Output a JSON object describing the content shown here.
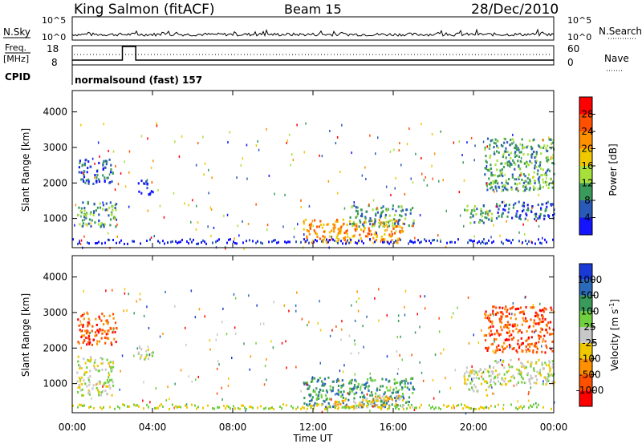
{
  "header": {
    "station": "King Salmon (fitACF)",
    "beam": "Beam 15",
    "date": "28/Dec/2010"
  },
  "top_panels": {
    "nsky_label": "N.Sky",
    "nsearch_label": "N.Search",
    "nsky_ticks": [
      "10^5",
      "10^0"
    ],
    "freq_label_line1": "Freq.",
    "freq_label_line2": "[MHz]",
    "freq_ticks": [
      "18",
      "8"
    ],
    "nave_label": "Nave",
    "nave_ticks": [
      "60",
      "0"
    ],
    "cpid_label": "CPID",
    "cpid_text": "normalsound (fast) 157",
    "freq_step": {
      "start": "02:30",
      "end": "03:10"
    }
  },
  "chart_data": [
    {
      "type": "heatmap",
      "title": "",
      "ylabel": "Slant Range [km]",
      "xlabel": "",
      "x_ticks": [
        "00:00",
        "04:00",
        "08:00",
        "12:00",
        "16:00",
        "20:00",
        "00:00"
      ],
      "y_ticks": [
        "1000",
        "2000",
        "3000",
        "4000"
      ],
      "xlim_hours": [
        0,
        24
      ],
      "ylim_km": [
        180,
        4600
      ],
      "colorbar": {
        "label": "Power [dB]",
        "ticks": [
          "4",
          "8",
          "12",
          "16",
          "20",
          "24",
          "28"
        ],
        "colors": [
          "#1414ff",
          "#2a5ab8",
          "#3a9a5a",
          "#a6e03a",
          "#f0c800",
          "#ff9000",
          "#ff5000",
          "#ff0000"
        ]
      },
      "echo_regions": [
        {
          "t_start": 0.2,
          "t_end": 2.2,
          "r_min": 800,
          "r_max": 1500,
          "level": 2
        },
        {
          "t_start": 0.3,
          "t_end": 2.0,
          "r_min": 2000,
          "r_max": 2700,
          "level": 1
        },
        {
          "t_start": 3.2,
          "t_end": 4.0,
          "r_min": 1700,
          "r_max": 2100,
          "level": 0
        },
        {
          "t_start": 11.5,
          "t_end": 16.5,
          "r_min": 350,
          "r_max": 1000,
          "level": 5
        },
        {
          "t_start": 13.8,
          "t_end": 17.0,
          "r_min": 800,
          "r_max": 1400,
          "level": 2
        },
        {
          "t_start": 19.5,
          "t_end": 21.0,
          "r_min": 900,
          "r_max": 1400,
          "level": 2
        },
        {
          "t_start": 20.5,
          "t_end": 24.0,
          "r_min": 1800,
          "r_max": 3300,
          "level": 2
        },
        {
          "t_start": 21.0,
          "t_end": 24.0,
          "r_min": 1000,
          "r_max": 1500,
          "level": 1
        }
      ]
    },
    {
      "type": "heatmap",
      "title": "",
      "ylabel": "Slant Range [km]",
      "xlabel": "Time UT",
      "x_ticks": [
        "00:00",
        "04:00",
        "08:00",
        "12:00",
        "16:00",
        "20:00",
        "00:00"
      ],
      "y_ticks": [
        "1000",
        "2000",
        "3000",
        "4000"
      ],
      "xlim_hours": [
        0,
        24
      ],
      "ylim_km": [
        180,
        4600
      ],
      "colorbar": {
        "label": "Velocity [m s^-1]",
        "ticks": [
          "1000",
          "500",
          "100",
          "25",
          "-25",
          "-100",
          "-500",
          "-1000"
        ],
        "colors": [
          "#1a3ad8",
          "#2a6ab8",
          "#3a9a5a",
          "#70d040",
          "#c8c8c8",
          "#f0c800",
          "#ff9000",
          "#ff5000",
          "#ff0000"
        ]
      },
      "echo_regions": [
        {
          "t_start": 0.2,
          "t_end": 2.0,
          "r_min": 700,
          "r_max": 1800,
          "level": 4
        },
        {
          "t_start": 0.2,
          "t_end": 2.2,
          "r_min": 2100,
          "r_max": 3000,
          "level": 7
        },
        {
          "t_start": 3.2,
          "t_end": 4.0,
          "r_min": 1700,
          "r_max": 2100,
          "level": 4
        },
        {
          "t_start": 11.5,
          "t_end": 17.0,
          "r_min": 350,
          "r_max": 1200,
          "level": 2
        },
        {
          "t_start": 13.0,
          "t_end": 16.5,
          "r_min": 350,
          "r_max": 700,
          "level": 5
        },
        {
          "t_start": 19.5,
          "t_end": 21.0,
          "r_min": 700,
          "r_max": 1500,
          "level": 4
        },
        {
          "t_start": 21.0,
          "t_end": 24.0,
          "r_min": 1000,
          "r_max": 1700,
          "level": 4
        },
        {
          "t_start": 20.5,
          "t_end": 24.0,
          "r_min": 1900,
          "r_max": 3200,
          "level": 7
        }
      ]
    }
  ]
}
